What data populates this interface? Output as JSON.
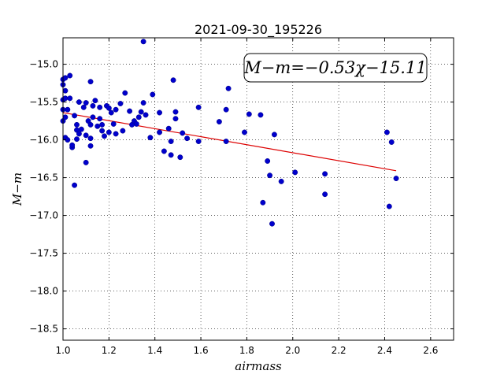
{
  "chart_data": {
    "type": "scatter",
    "title": "2021-09-30_195226",
    "xlabel": "airmass",
    "ylabel": "M−m",
    "xlim": [
      1.0,
      2.7
    ],
    "ylim": [
      -18.65,
      -14.65
    ],
    "x_ticks": [
      1.0,
      1.2,
      1.4,
      1.6,
      1.8,
      2.0,
      2.2,
      2.4,
      2.6
    ],
    "x_tick_labels": [
      "1.0",
      "1.2",
      "1.4",
      "1.6",
      "1.8",
      "2.0",
      "2.2",
      "2.4",
      "2.6"
    ],
    "y_ticks": [
      -15.0,
      -15.5,
      -16.0,
      -16.5,
      -17.0,
      -17.5,
      -18.0,
      -18.5
    ],
    "y_tick_labels": [
      "−15.0",
      "−15.5",
      "−16.0",
      "−16.5",
      "−17.0",
      "−17.5",
      "−18.0",
      "−18.5"
    ],
    "grid": true,
    "point_color": "#0000cc",
    "fit_color": "#dd0000",
    "annotation": "M−m=−0.53χ−15.11",
    "fit": {
      "slope": -0.53,
      "intercept": -15.11,
      "x_range": [
        1.0,
        2.45
      ]
    },
    "points": [
      {
        "x": 1.0,
        "y": -15.2
      },
      {
        "x": 1.0,
        "y": -15.27
      },
      {
        "x": 1.0,
        "y": -15.47
      },
      {
        "x": 1.0,
        "y": -15.6
      },
      {
        "x": 1.0,
        "y": -15.75
      },
      {
        "x": 1.01,
        "y": -15.18
      },
      {
        "x": 1.01,
        "y": -15.35
      },
      {
        "x": 1.01,
        "y": -15.45
      },
      {
        "x": 1.01,
        "y": -15.7
      },
      {
        "x": 1.01,
        "y": -15.97
      },
      {
        "x": 1.02,
        "y": -16.0
      },
      {
        "x": 1.02,
        "y": -15.6
      },
      {
        "x": 1.03,
        "y": -15.15
      },
      {
        "x": 1.03,
        "y": -15.45
      },
      {
        "x": 1.04,
        "y": -16.1
      },
      {
        "x": 1.04,
        "y": -16.07
      },
      {
        "x": 1.05,
        "y": -16.6
      },
      {
        "x": 1.05,
        "y": -15.68
      },
      {
        "x": 1.06,
        "y": -15.8
      },
      {
        "x": 1.06,
        "y": -15.87
      },
      {
        "x": 1.06,
        "y": -15.99
      },
      {
        "x": 1.07,
        "y": -15.5
      },
      {
        "x": 1.07,
        "y": -15.92
      },
      {
        "x": 1.08,
        "y": -15.86
      },
      {
        "x": 1.09,
        "y": -15.57
      },
      {
        "x": 1.1,
        "y": -15.51
      },
      {
        "x": 1.1,
        "y": -15.94
      },
      {
        "x": 1.1,
        "y": -16.3
      },
      {
        "x": 1.11,
        "y": -15.75
      },
      {
        "x": 1.12,
        "y": -15.98
      },
      {
        "x": 1.12,
        "y": -15.8
      },
      {
        "x": 1.12,
        "y": -16.08
      },
      {
        "x": 1.12,
        "y": -15.23
      },
      {
        "x": 1.13,
        "y": -15.55
      },
      {
        "x": 1.13,
        "y": -15.7
      },
      {
        "x": 1.14,
        "y": -15.48
      },
      {
        "x": 1.15,
        "y": -15.82
      },
      {
        "x": 1.16,
        "y": -15.57
      },
      {
        "x": 1.16,
        "y": -15.72
      },
      {
        "x": 1.17,
        "y": -15.88
      },
      {
        "x": 1.17,
        "y": -15.8
      },
      {
        "x": 1.18,
        "y": -15.95
      },
      {
        "x": 1.19,
        "y": -15.55
      },
      {
        "x": 1.2,
        "y": -15.9
      },
      {
        "x": 1.2,
        "y": -15.58
      },
      {
        "x": 1.21,
        "y": -15.64
      },
      {
        "x": 1.22,
        "y": -15.79
      },
      {
        "x": 1.23,
        "y": -15.92
      },
      {
        "x": 1.23,
        "y": -15.6
      },
      {
        "x": 1.25,
        "y": -15.52
      },
      {
        "x": 1.26,
        "y": -15.88
      },
      {
        "x": 1.27,
        "y": -15.38
      },
      {
        "x": 1.29,
        "y": -15.62
      },
      {
        "x": 1.3,
        "y": -15.8
      },
      {
        "x": 1.31,
        "y": -15.75
      },
      {
        "x": 1.32,
        "y": -15.79
      },
      {
        "x": 1.33,
        "y": -15.7
      },
      {
        "x": 1.34,
        "y": -15.63
      },
      {
        "x": 1.35,
        "y": -15.51
      },
      {
        "x": 1.35,
        "y": -14.7
      },
      {
        "x": 1.36,
        "y": -15.67
      },
      {
        "x": 1.38,
        "y": -15.97
      },
      {
        "x": 1.39,
        "y": -15.4
      },
      {
        "x": 1.42,
        "y": -15.9
      },
      {
        "x": 1.42,
        "y": -15.64
      },
      {
        "x": 1.44,
        "y": -16.15
      },
      {
        "x": 1.46,
        "y": -15.85
      },
      {
        "x": 1.47,
        "y": -16.2
      },
      {
        "x": 1.47,
        "y": -16.02
      },
      {
        "x": 1.48,
        "y": -15.21
      },
      {
        "x": 1.49,
        "y": -15.63
      },
      {
        "x": 1.49,
        "y": -15.72
      },
      {
        "x": 1.51,
        "y": -16.23
      },
      {
        "x": 1.52,
        "y": -15.91
      },
      {
        "x": 1.54,
        "y": -15.98
      },
      {
        "x": 1.59,
        "y": -15.57
      },
      {
        "x": 1.59,
        "y": -16.02
      },
      {
        "x": 1.68,
        "y": -15.76
      },
      {
        "x": 1.71,
        "y": -16.02
      },
      {
        "x": 1.71,
        "y": -15.6
      },
      {
        "x": 1.72,
        "y": -15.32
      },
      {
        "x": 1.79,
        "y": -15.9
      },
      {
        "x": 1.81,
        "y": -15.66
      },
      {
        "x": 1.86,
        "y": -15.67
      },
      {
        "x": 1.87,
        "y": -16.83
      },
      {
        "x": 1.89,
        "y": -16.28
      },
      {
        "x": 1.9,
        "y": -16.47
      },
      {
        "x": 1.91,
        "y": -17.11
      },
      {
        "x": 1.92,
        "y": -15.93
      },
      {
        "x": 1.95,
        "y": -16.55
      },
      {
        "x": 2.01,
        "y": -16.43
      },
      {
        "x": 2.14,
        "y": -16.45
      },
      {
        "x": 2.14,
        "y": -16.72
      },
      {
        "x": 2.41,
        "y": -15.9
      },
      {
        "x": 2.42,
        "y": -16.88
      },
      {
        "x": 2.43,
        "y": -16.03
      },
      {
        "x": 2.45,
        "y": -16.51
      }
    ]
  }
}
